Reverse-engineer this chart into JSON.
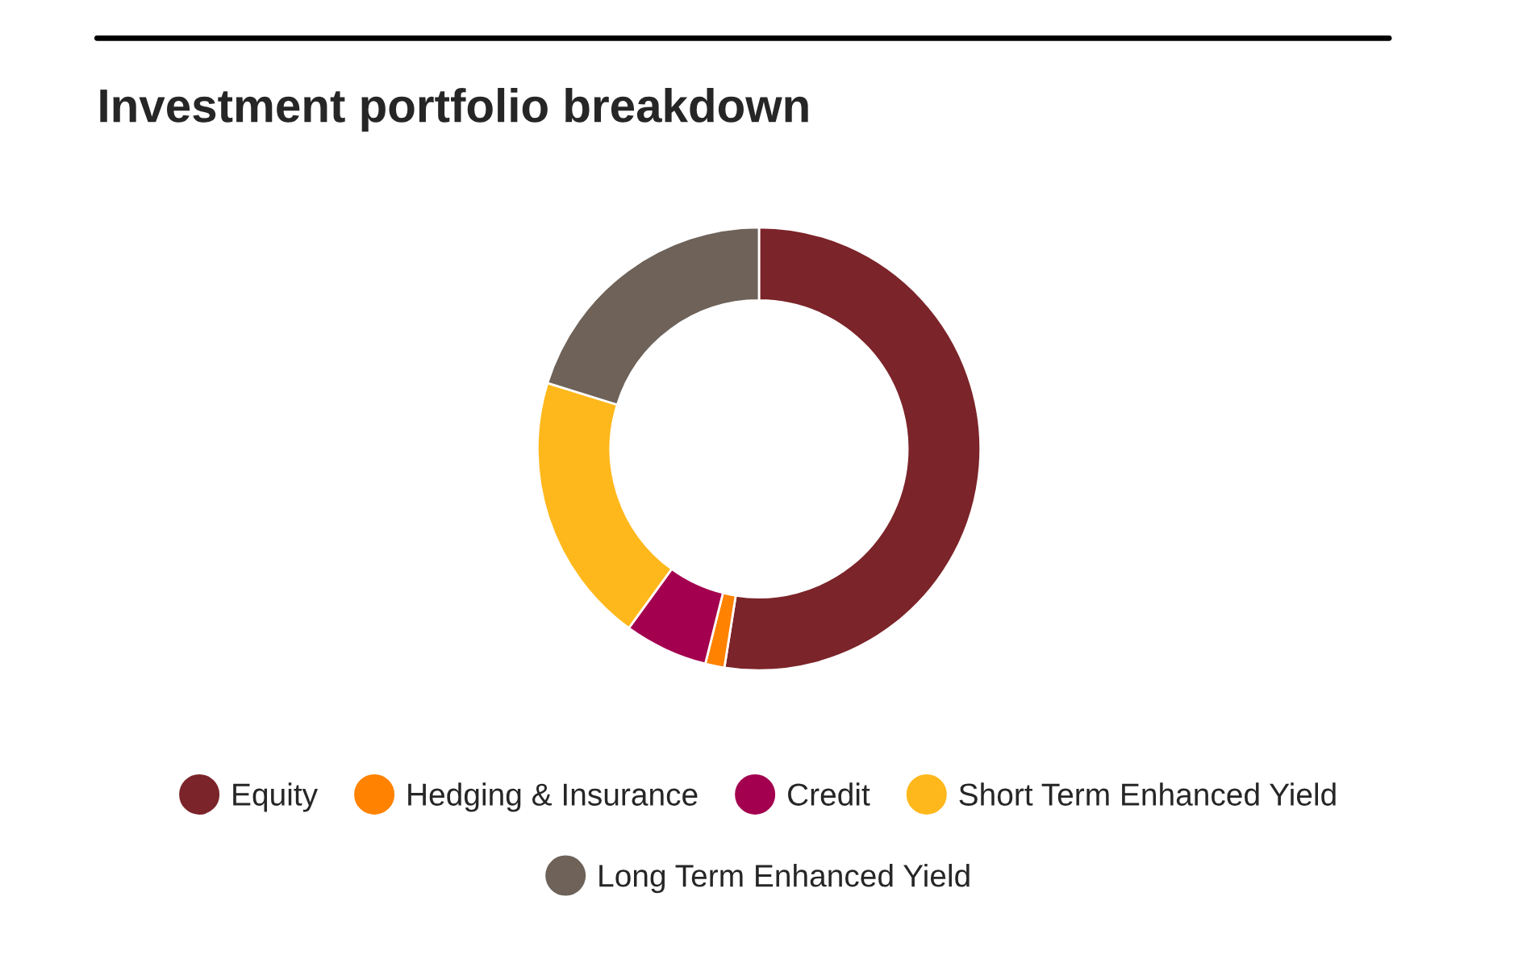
{
  "chart_data": {
    "type": "donut",
    "title": "Investment portfolio breakdown",
    "categories": [
      "Equity",
      "Hedging & Insurance",
      "Credit",
      "Short Term Enhanced Yield",
      "Long Term Enhanced Yield"
    ],
    "values": [
      52.5,
      1.4,
      6.1,
      19.8,
      20.2
    ],
    "colors": [
      "#7b2429",
      "#ff8200",
      "#a3004f",
      "#ffb81c",
      "#6e6259"
    ],
    "legend": "bottom"
  }
}
